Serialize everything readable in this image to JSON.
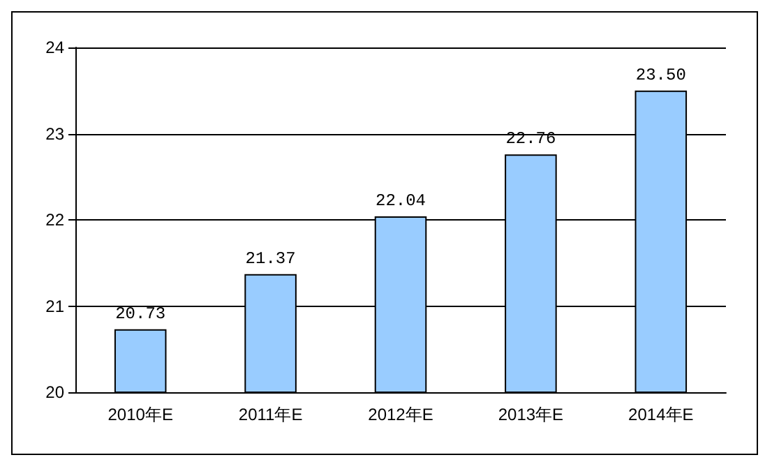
{
  "chart_data": {
    "type": "bar",
    "categories": [
      "2010年E",
      "2011年E",
      "2012年E",
      "2013年E",
      "2014年E"
    ],
    "values": [
      20.73,
      21.37,
      22.04,
      22.76,
      23.5
    ],
    "value_labels": [
      "20.73",
      "21.37",
      "22.04",
      "22.76",
      "23.50"
    ],
    "color": "#99ccff",
    "ylim": [
      20,
      24
    ],
    "yticks": [
      20,
      21,
      22,
      23,
      24
    ],
    "grid": "y"
  }
}
